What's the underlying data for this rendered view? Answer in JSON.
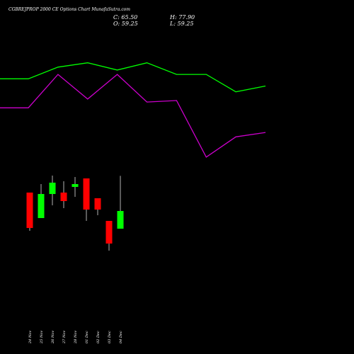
{
  "header": {
    "title": "CGBREJPROP 2000  CE Options  Chart MunafaSutra.com",
    "close_label": "C: 65.50",
    "open_label": "O: 59.25",
    "high_label": "H: 77.90",
    "low_label": "L: 59.25"
  },
  "colors": {
    "background": "#000000",
    "up": "#00ff00",
    "down": "#ff0000",
    "line_green": "#00ff00",
    "line_purple": "#cc00cc",
    "text": "#ffffff"
  },
  "chart_data": {
    "type": "candlestick",
    "categories": [
      "24 Nov",
      "25 Nov",
      "26 Nov",
      "27 Nov",
      "28 Nov",
      "01 Dec",
      "02 Dec",
      "03 Dec",
      "04 Dec"
    ],
    "candles": [
      {
        "date": "24 Nov",
        "open": 72,
        "high": 72,
        "low": 58.5,
        "close": 59.5
      },
      {
        "date": "25 Nov",
        "open": 63,
        "high": 75,
        "low": 63,
        "close": 71.5
      },
      {
        "date": "26 Nov",
        "open": 71.5,
        "high": 78,
        "low": 67.5,
        "close": 75.5
      },
      {
        "date": "27 Nov",
        "open": 72,
        "high": 76,
        "low": 66.5,
        "close": 69
      },
      {
        "date": "28 Nov",
        "open": 74,
        "high": 77.5,
        "low": 70.5,
        "close": 75
      },
      {
        "date": "01 Dec",
        "open": 77,
        "high": 77,
        "low": 62,
        "close": 66
      },
      {
        "date": "02 Dec",
        "open": 70,
        "high": 70,
        "low": 64,
        "close": 66
      },
      {
        "date": "03 Dec",
        "open": 62,
        "high": 62,
        "low": 51.5,
        "close": 54
      },
      {
        "date": "04 Dec",
        "open": 59.25,
        "high": 77.9,
        "low": 59.25,
        "close": 65.5
      }
    ],
    "price_range": [
      40,
      90
    ],
    "overlay_lines": [
      {
        "color": "#00ff00",
        "values": [
          75,
          75,
          83,
          86,
          81,
          86,
          78,
          78,
          66,
          70
        ]
      },
      {
        "color": "#cc00cc",
        "values": [
          55,
          55,
          78,
          61,
          78,
          59,
          60,
          21,
          35,
          38
        ]
      }
    ],
    "overlay_range": [
      0,
      100
    ],
    "grid": false
  }
}
